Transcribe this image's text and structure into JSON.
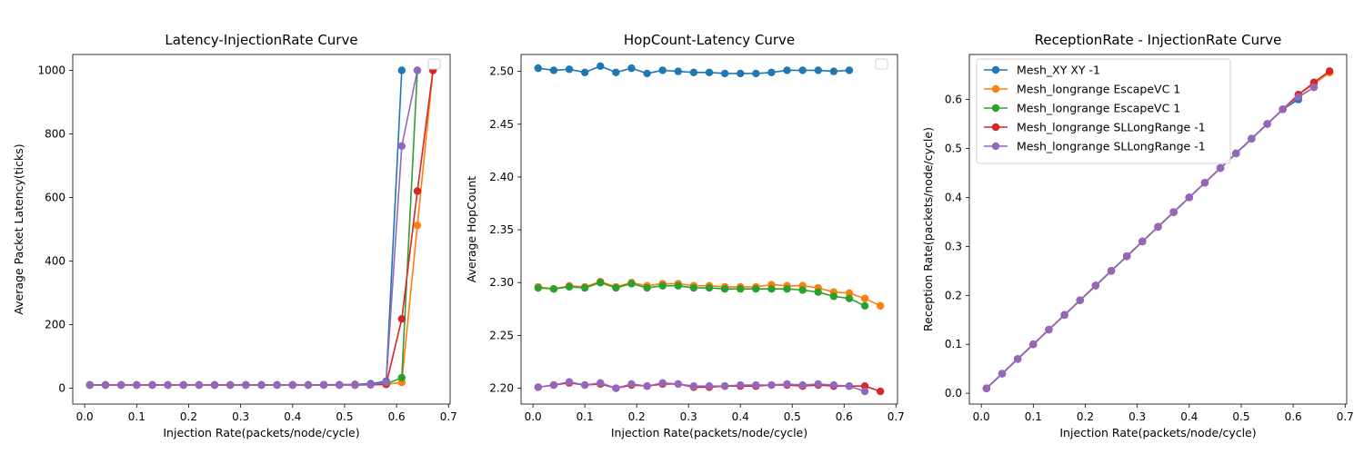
{
  "chart_data": [
    {
      "type": "line",
      "title": "Latency-InjectionRate Curve",
      "xlabel": "Injection Rate(packets/node/cycle)",
      "ylabel": "Average Packet Latency(ticks)",
      "xlim": [
        -0.023,
        0.703
      ],
      "ylim": [
        -50,
        1050
      ],
      "xticks": [
        0.0,
        0.1,
        0.2,
        0.3,
        0.4,
        0.5,
        0.6,
        0.7
      ],
      "xtick_labels": [
        "0.0",
        "0.1",
        "0.2",
        "0.3",
        "0.4",
        "0.5",
        "0.6",
        "0.7"
      ],
      "yticks": [
        0,
        200,
        400,
        600,
        800,
        1000
      ],
      "ytick_labels": [
        "0",
        "200",
        "400",
        "600",
        "800",
        "1000"
      ],
      "grid": false,
      "legend": "top-right-empty",
      "series": [
        {
          "color": "#1f77b4",
          "x": [
            0.01,
            0.04,
            0.07,
            0.1,
            0.13,
            0.16,
            0.19,
            0.22,
            0.25,
            0.28,
            0.31,
            0.34,
            0.37,
            0.4,
            0.43,
            0.46,
            0.49,
            0.52,
            0.55,
            0.58,
            0.61
          ],
          "y": [
            10,
            10,
            10,
            10,
            10,
            10,
            10,
            10,
            10,
            10,
            10,
            10,
            10,
            10,
            10,
            11,
            11,
            12,
            14,
            22,
            1000
          ]
        },
        {
          "color": "#ff7f0e",
          "x": [
            0.01,
            0.04,
            0.07,
            0.1,
            0.13,
            0.16,
            0.19,
            0.22,
            0.25,
            0.28,
            0.31,
            0.34,
            0.37,
            0.4,
            0.43,
            0.46,
            0.49,
            0.52,
            0.55,
            0.58,
            0.61,
            0.64,
            0.67
          ],
          "y": [
            10,
            10,
            10,
            10,
            10,
            10,
            10,
            10,
            10,
            10,
            10,
            10,
            10,
            10,
            10,
            10,
            10,
            10,
            11,
            12,
            18,
            512,
            1000
          ]
        },
        {
          "color": "#2ca02c",
          "x": [
            0.01,
            0.04,
            0.07,
            0.1,
            0.13,
            0.16,
            0.19,
            0.22,
            0.25,
            0.28,
            0.31,
            0.34,
            0.37,
            0.4,
            0.43,
            0.46,
            0.49,
            0.52,
            0.55,
            0.58,
            0.61,
            0.64
          ],
          "y": [
            10,
            10,
            10,
            10,
            10,
            10,
            10,
            10,
            10,
            10,
            10,
            10,
            10,
            10,
            10,
            10,
            10,
            10,
            11,
            13,
            33,
            1000
          ]
        },
        {
          "color": "#d62728",
          "x": [
            0.01,
            0.04,
            0.07,
            0.1,
            0.13,
            0.16,
            0.19,
            0.22,
            0.25,
            0.28,
            0.31,
            0.34,
            0.37,
            0.4,
            0.43,
            0.46,
            0.49,
            0.52,
            0.55,
            0.58,
            0.61,
            0.64,
            0.67
          ],
          "y": [
            10,
            10,
            10,
            10,
            10,
            10,
            10,
            10,
            10,
            10,
            10,
            10,
            10,
            10,
            10,
            10,
            10,
            10,
            11,
            12,
            218,
            620,
            1000
          ]
        },
        {
          "color": "#9467bd",
          "x": [
            0.01,
            0.04,
            0.07,
            0.1,
            0.13,
            0.16,
            0.19,
            0.22,
            0.25,
            0.28,
            0.31,
            0.34,
            0.37,
            0.4,
            0.43,
            0.46,
            0.49,
            0.52,
            0.55,
            0.58,
            0.61,
            0.64
          ],
          "y": [
            10,
            10,
            10,
            10,
            10,
            10,
            10,
            10,
            10,
            10,
            10,
            10,
            10,
            10,
            10,
            10,
            10,
            10,
            11,
            18,
            762,
            1000
          ]
        }
      ]
    },
    {
      "type": "line",
      "title": "HopCount-Latency Curve",
      "xlabel": "Injection Rate(packets/node/cycle)",
      "ylabel": "Average HopCount",
      "xlim": [
        -0.023,
        0.703
      ],
      "ylim": [
        2.185,
        2.516
      ],
      "xticks": [
        0.0,
        0.1,
        0.2,
        0.3,
        0.4,
        0.5,
        0.6,
        0.7
      ],
      "xtick_labels": [
        "0.0",
        "0.1",
        "0.2",
        "0.3",
        "0.4",
        "0.5",
        "0.6",
        "0.7"
      ],
      "yticks": [
        2.2,
        2.25,
        2.3,
        2.35,
        2.4,
        2.45,
        2.5
      ],
      "ytick_labels": [
        "2.20",
        "2.25",
        "2.30",
        "2.35",
        "2.40",
        "2.45",
        "2.50"
      ],
      "grid": false,
      "legend": "top-right-empty",
      "series": [
        {
          "color": "#1f77b4",
          "x": [
            0.01,
            0.04,
            0.07,
            0.1,
            0.13,
            0.16,
            0.19,
            0.22,
            0.25,
            0.28,
            0.31,
            0.34,
            0.37,
            0.4,
            0.43,
            0.46,
            0.49,
            0.52,
            0.55,
            0.58,
            0.61
          ],
          "y": [
            2.503,
            2.501,
            2.502,
            2.499,
            2.505,
            2.499,
            2.503,
            2.498,
            2.501,
            2.5,
            2.499,
            2.499,
            2.498,
            2.498,
            2.498,
            2.499,
            2.501,
            2.501,
            2.501,
            2.5,
            2.501
          ]
        },
        {
          "color": "#ff7f0e",
          "x": [
            0.01,
            0.04,
            0.07,
            0.1,
            0.13,
            0.16,
            0.19,
            0.22,
            0.25,
            0.28,
            0.31,
            0.34,
            0.37,
            0.4,
            0.43,
            0.46,
            0.49,
            0.52,
            0.55,
            0.58,
            0.61,
            0.64,
            0.67
          ],
          "y": [
            2.296,
            2.294,
            2.297,
            2.296,
            2.301,
            2.296,
            2.3,
            2.297,
            2.299,
            2.299,
            2.297,
            2.297,
            2.296,
            2.296,
            2.296,
            2.298,
            2.297,
            2.297,
            2.295,
            2.291,
            2.29,
            2.285,
            2.278
          ]
        },
        {
          "color": "#2ca02c",
          "x": [
            0.01,
            0.04,
            0.07,
            0.1,
            0.13,
            0.16,
            0.19,
            0.22,
            0.25,
            0.28,
            0.31,
            0.34,
            0.37,
            0.4,
            0.43,
            0.46,
            0.49,
            0.52,
            0.55,
            0.58,
            0.61,
            0.64
          ],
          "y": [
            2.295,
            2.294,
            2.296,
            2.295,
            2.3,
            2.295,
            2.299,
            2.295,
            2.297,
            2.297,
            2.295,
            2.295,
            2.294,
            2.294,
            2.294,
            2.294,
            2.294,
            2.293,
            2.291,
            2.287,
            2.285,
            2.278
          ]
        },
        {
          "color": "#d62728",
          "x": [
            0.01,
            0.04,
            0.07,
            0.1,
            0.13,
            0.16,
            0.19,
            0.22,
            0.25,
            0.28,
            0.31,
            0.34,
            0.37,
            0.4,
            0.43,
            0.46,
            0.49,
            0.52,
            0.55,
            0.58,
            0.61,
            0.64,
            0.67
          ],
          "y": [
            2.201,
            2.203,
            2.205,
            2.203,
            2.204,
            2.2,
            2.203,
            2.202,
            2.204,
            2.204,
            2.201,
            2.201,
            2.202,
            2.202,
            2.202,
            2.203,
            2.203,
            2.202,
            2.203,
            2.202,
            2.202,
            2.202,
            2.197
          ]
        },
        {
          "color": "#9467bd",
          "x": [
            0.01,
            0.04,
            0.07,
            0.1,
            0.13,
            0.16,
            0.19,
            0.22,
            0.25,
            0.28,
            0.31,
            0.34,
            0.37,
            0.4,
            0.43,
            0.46,
            0.49,
            0.52,
            0.55,
            0.58,
            0.61,
            0.64
          ],
          "y": [
            2.201,
            2.203,
            2.206,
            2.203,
            2.205,
            2.2,
            2.204,
            2.202,
            2.205,
            2.204,
            2.202,
            2.202,
            2.202,
            2.203,
            2.203,
            2.203,
            2.204,
            2.203,
            2.204,
            2.203,
            2.202,
            2.197
          ]
        }
      ]
    },
    {
      "type": "line",
      "title": "ReceptionRate - InjectionRate Curve",
      "xlabel": "Injection Rate(packets/node/cycle)",
      "ylabel": "Reception Rate(packets/node/cycle)",
      "xlim": [
        -0.023,
        0.703
      ],
      "ylim": [
        -0.022,
        0.692
      ],
      "xticks": [
        0.0,
        0.1,
        0.2,
        0.3,
        0.4,
        0.5,
        0.6,
        0.7
      ],
      "xtick_labels": [
        "0.0",
        "0.1",
        "0.2",
        "0.3",
        "0.4",
        "0.5",
        "0.6",
        "0.7"
      ],
      "yticks": [
        0.0,
        0.1,
        0.2,
        0.3,
        0.4,
        0.5,
        0.6
      ],
      "ytick_labels": [
        "0.0",
        "0.1",
        "0.2",
        "0.3",
        "0.4",
        "0.5",
        "0.6"
      ],
      "grid": false,
      "legend": "top-left",
      "series": [
        {
          "name": "Mesh_XY XY -1",
          "color": "#1f77b4",
          "x": [
            0.01,
            0.04,
            0.07,
            0.1,
            0.13,
            0.16,
            0.19,
            0.22,
            0.25,
            0.28,
            0.31,
            0.34,
            0.37,
            0.4,
            0.43,
            0.46,
            0.49,
            0.52,
            0.55,
            0.58,
            0.61
          ],
          "y": [
            0.01,
            0.04,
            0.07,
            0.1,
            0.13,
            0.16,
            0.19,
            0.22,
            0.25,
            0.28,
            0.31,
            0.34,
            0.37,
            0.4,
            0.43,
            0.46,
            0.49,
            0.52,
            0.55,
            0.58,
            0.6
          ]
        },
        {
          "name": "Mesh_longrange EscapeVC 1",
          "color": "#ff7f0e",
          "x": [
            0.01,
            0.04,
            0.07,
            0.1,
            0.13,
            0.16,
            0.19,
            0.22,
            0.25,
            0.28,
            0.31,
            0.34,
            0.37,
            0.4,
            0.43,
            0.46,
            0.49,
            0.52,
            0.55,
            0.58,
            0.61,
            0.64,
            0.67
          ],
          "y": [
            0.01,
            0.04,
            0.07,
            0.1,
            0.13,
            0.16,
            0.19,
            0.22,
            0.25,
            0.28,
            0.31,
            0.34,
            0.37,
            0.4,
            0.43,
            0.46,
            0.49,
            0.52,
            0.55,
            0.58,
            0.61,
            0.632,
            0.655
          ]
        },
        {
          "name": "Mesh_longrange EscapeVC 1",
          "color": "#2ca02c",
          "x": [
            0.01,
            0.04,
            0.07,
            0.1,
            0.13,
            0.16,
            0.19,
            0.22,
            0.25,
            0.28,
            0.31,
            0.34,
            0.37,
            0.4,
            0.43,
            0.46,
            0.49,
            0.52,
            0.55,
            0.58,
            0.61,
            0.64
          ],
          "y": [
            0.01,
            0.04,
            0.07,
            0.1,
            0.13,
            0.16,
            0.19,
            0.22,
            0.25,
            0.28,
            0.31,
            0.34,
            0.37,
            0.4,
            0.43,
            0.46,
            0.49,
            0.52,
            0.55,
            0.58,
            0.605,
            0.625
          ]
        },
        {
          "name": "Mesh_longrange SLLongRange -1",
          "color": "#d62728",
          "x": [
            0.01,
            0.04,
            0.07,
            0.1,
            0.13,
            0.16,
            0.19,
            0.22,
            0.25,
            0.28,
            0.31,
            0.34,
            0.37,
            0.4,
            0.43,
            0.46,
            0.49,
            0.52,
            0.55,
            0.58,
            0.61,
            0.64,
            0.67
          ],
          "y": [
            0.01,
            0.04,
            0.07,
            0.1,
            0.13,
            0.16,
            0.19,
            0.22,
            0.25,
            0.28,
            0.31,
            0.34,
            0.37,
            0.4,
            0.43,
            0.46,
            0.49,
            0.52,
            0.55,
            0.58,
            0.61,
            0.635,
            0.658
          ]
        },
        {
          "name": "Mesh_longrange SLLongRange -1",
          "color": "#9467bd",
          "x": [
            0.01,
            0.04,
            0.07,
            0.1,
            0.13,
            0.16,
            0.19,
            0.22,
            0.25,
            0.28,
            0.31,
            0.34,
            0.37,
            0.4,
            0.43,
            0.46,
            0.49,
            0.52,
            0.55,
            0.58,
            0.61,
            0.64
          ],
          "y": [
            0.01,
            0.04,
            0.07,
            0.1,
            0.13,
            0.16,
            0.19,
            0.22,
            0.25,
            0.28,
            0.31,
            0.34,
            0.37,
            0.4,
            0.43,
            0.46,
            0.49,
            0.52,
            0.55,
            0.58,
            0.605,
            0.625
          ]
        }
      ]
    }
  ]
}
